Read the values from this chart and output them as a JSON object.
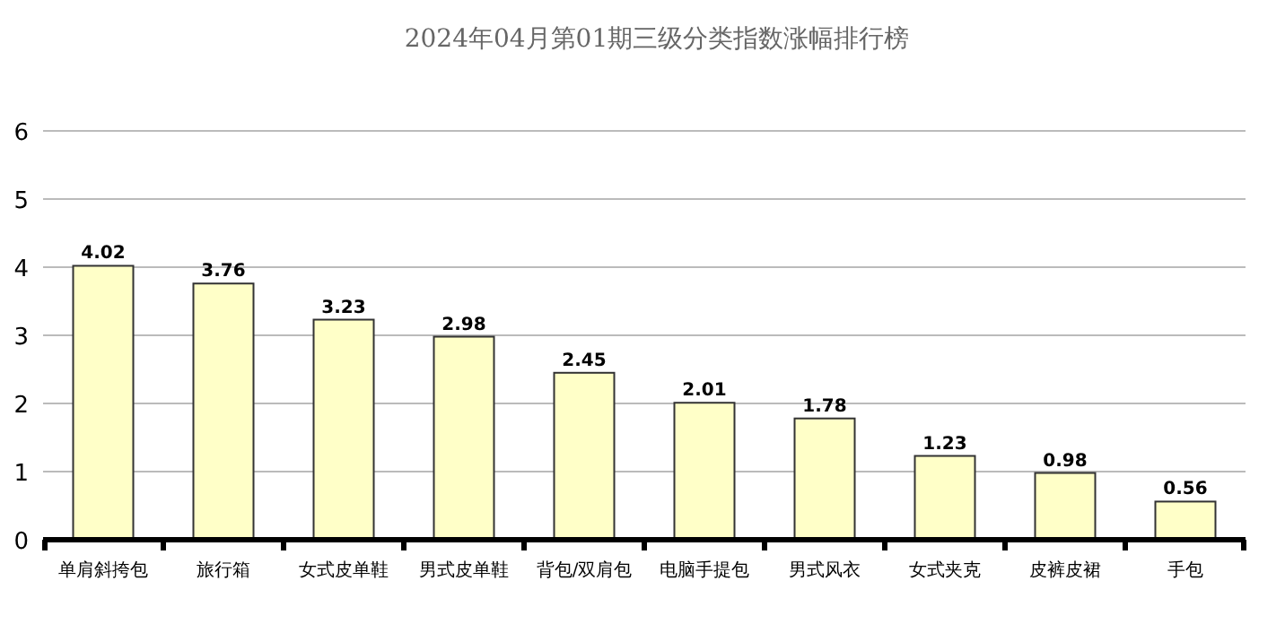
{
  "chart_data": {
    "type": "bar",
    "title": "2024年04月第01期三级分类指数涨幅排行榜",
    "categories": [
      "单肩斜挎包",
      "旅行箱",
      "女式皮单鞋",
      "男式皮单鞋",
      "背包/双肩包",
      "电脑手提包",
      "男式风衣",
      "女式夹克",
      "皮裤皮裙",
      "手包"
    ],
    "values": [
      4.02,
      3.76,
      3.23,
      2.98,
      2.45,
      2.01,
      1.78,
      1.23,
      0.98,
      0.56
    ],
    "color": "#ffffc8",
    "ylim": [
      0,
      6
    ],
    "yticks": [
      0,
      1,
      2,
      3,
      4,
      5,
      6
    ],
    "grid": "y",
    "data_labels": true
  }
}
